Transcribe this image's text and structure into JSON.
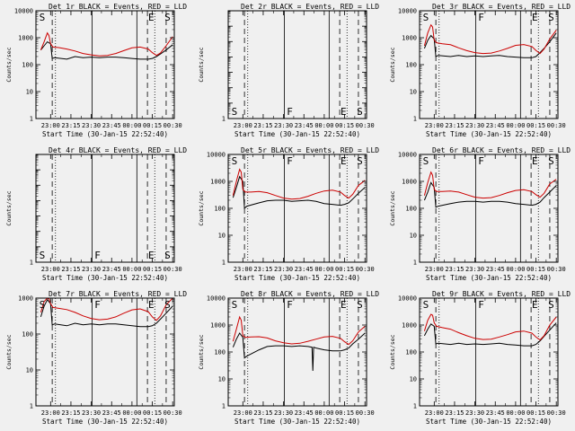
{
  "chart_data": [
    {
      "type": "line",
      "title": "Det 1r BLACK = Events, RED = LLD",
      "ylabel": "Counts/sec",
      "xlabel": "Start Time (30-Jan-15 22:52:40)",
      "xtick_labels": [
        "23:00",
        "23:15",
        "23:30",
        "23:45",
        "00:00",
        "00:15",
        "00:30"
      ],
      "ylog": true,
      "ylim": [
        1,
        10000
      ],
      "ytick_labels": [
        "1",
        "10",
        "100",
        "1000",
        "10000"
      ],
      "markers": [
        "S",
        "E",
        "S"
      ],
      "series": [
        {
          "color": "#000000",
          "x": [
            22.88,
            22.92,
            22.96,
            23.0,
            23.02,
            23.05,
            23.2,
            23.3,
            23.4,
            23.5,
            23.6,
            23.7,
            23.8,
            23.9,
            24.0,
            24.1,
            24.2,
            24.25,
            24.3,
            24.35,
            24.42,
            24.5
          ],
          "y": [
            350,
            500,
            700,
            600,
            170,
            180,
            160,
            200,
            180,
            190,
            180,
            190,
            190,
            180,
            170,
            160,
            160,
            170,
            200,
            250,
            350,
            550
          ]
        },
        {
          "color": "#cc0000",
          "x": [
            22.88,
            22.92,
            22.96,
            22.98,
            23.0,
            23.03,
            23.1,
            23.2,
            23.3,
            23.4,
            23.5,
            23.6,
            23.7,
            23.8,
            23.9,
            24.0,
            24.1,
            24.2,
            24.25,
            24.3,
            24.35,
            24.42,
            24.5
          ],
          "y": [
            350,
            700,
            1500,
            1200,
            600,
            450,
            430,
            380,
            320,
            260,
            230,
            210,
            220,
            260,
            330,
            420,
            450,
            380,
            280,
            220,
            270,
            500,
            1100
          ]
        }
      ]
    },
    {
      "type": "line",
      "title": "Det 2r BLACK = Events, RED = LLD",
      "ylabel": "Counts/sec",
      "xlabel": "Start Time (30-Jan-15 22:52:40)",
      "xtick_labels": [
        "23:00",
        "23:15",
        "23:30",
        "23:45",
        "00:00",
        "00:15",
        "00:30"
      ],
      "ylog": true,
      "ylim": [
        1,
        1.0000000001
      ],
      "ytick_labels": [
        "1",
        "",
        "",
        "",
        "",
        "",
        "",
        ""
      ],
      "markers": [
        "S",
        "F",
        "E",
        "S"
      ],
      "series": []
    },
    {
      "type": "line",
      "title": "Det 3r BLACK = Events, RED = LLD",
      "ylabel": "Counts/sec",
      "xlabel": "Start Time (30-Jan-15 22:52:40)",
      "xtick_labels": [
        "23:00",
        "23:15",
        "23:30",
        "23:45",
        "00:00",
        "00:15",
        "00:30"
      ],
      "ylog": true,
      "ylim": [
        1,
        10000
      ],
      "ytick_labels": [
        "1",
        "10",
        "100",
        "1000",
        "10000"
      ],
      "markers": [
        "S",
        "F",
        "E",
        "S"
      ],
      "series": [
        {
          "color": "#000000",
          "x": [
            22.88,
            22.92,
            22.96,
            23.0,
            23.02,
            23.05,
            23.2,
            23.3,
            23.4,
            23.5,
            23.6,
            23.7,
            23.8,
            23.9,
            24.0,
            24.1,
            24.2,
            24.25,
            24.3,
            24.35,
            24.42,
            24.5
          ],
          "y": [
            400,
            800,
            1200,
            900,
            200,
            220,
            200,
            220,
            200,
            210,
            200,
            210,
            220,
            200,
            190,
            180,
            180,
            200,
            280,
            400,
            700,
            1500
          ]
        },
        {
          "color": "#cc0000",
          "x": [
            22.88,
            22.92,
            22.96,
            22.98,
            23.0,
            23.03,
            23.1,
            23.2,
            23.3,
            23.4,
            23.5,
            23.6,
            23.7,
            23.8,
            23.9,
            24.0,
            24.1,
            24.2,
            24.25,
            24.3,
            24.35,
            24.42,
            24.5
          ],
          "y": [
            500,
            1500,
            3000,
            2500,
            800,
            650,
            600,
            550,
            420,
            330,
            280,
            260,
            270,
            320,
            400,
            520,
            560,
            470,
            340,
            260,
            380,
            900,
            1900
          ]
        }
      ]
    },
    {
      "type": "line",
      "title": "Det 4r BLACK = Events, RED = LLD",
      "ylabel": "Counts/sec",
      "xlabel": "Start Time (30-Jan-15 22:52:40)",
      "xtick_labels": [
        "23:00",
        "23:15",
        "23:30",
        "23:45",
        "00:00",
        "00:15",
        "00:30"
      ],
      "ylog": true,
      "ylim": [
        1,
        1.0000000001
      ],
      "ytick_labels": [
        "1",
        "",
        "",
        "",
        "",
        "",
        "",
        ""
      ],
      "markers": [
        "S",
        "F",
        "E",
        "S"
      ],
      "series": []
    },
    {
      "type": "line",
      "title": "Det 5r BLACK = Events, RED = LLD",
      "ylabel": "Counts/sec",
      "xlabel": "Start Time (30-Jan-15 22:52:40)",
      "xtick_labels": [
        "23:00",
        "23:15",
        "23:30",
        "23:45",
        "00:00",
        "00:15",
        "00:30"
      ],
      "ylog": true,
      "ylim": [
        1,
        10000
      ],
      "ytick_labels": [
        "1",
        "10",
        "100",
        "1000",
        "10000"
      ],
      "markers": [
        "S",
        "F",
        "E",
        "S"
      ],
      "series": [
        {
          "color": "#000000",
          "x": [
            22.88,
            22.92,
            22.96,
            23.0,
            23.02,
            23.05,
            23.2,
            23.3,
            23.4,
            23.5,
            23.6,
            23.7,
            23.8,
            23.9,
            24.0,
            24.1,
            24.2,
            24.25,
            24.3,
            24.35,
            24.42,
            24.5
          ],
          "y": [
            250,
            600,
            1500,
            1000,
            100,
            120,
            160,
            190,
            200,
            200,
            180,
            190,
            200,
            180,
            150,
            140,
            130,
            140,
            160,
            220,
            360,
            600
          ]
        },
        {
          "color": "#cc0000",
          "x": [
            22.88,
            22.92,
            22.96,
            22.98,
            23.0,
            23.03,
            23.1,
            23.2,
            23.3,
            23.4,
            23.5,
            23.6,
            23.7,
            23.8,
            23.9,
            24.0,
            24.1,
            24.2,
            24.25,
            24.3,
            24.35,
            24.42,
            24.5
          ],
          "y": [
            300,
            1000,
            2800,
            2200,
            500,
            400,
            400,
            420,
            380,
            300,
            240,
            220,
            230,
            280,
            360,
            440,
            470,
            400,
            300,
            240,
            330,
            700,
            1100
          ]
        }
      ]
    },
    {
      "type": "line",
      "title": "Det 6r BLACK = Events, RED = LLD",
      "ylabel": "Counts/sec",
      "xlabel": "Start Time (30-Jan-15 22:52:40)",
      "xtick_labels": [
        "23:00",
        "23:15",
        "23:30",
        "23:45",
        "00:00",
        "00:15",
        "00:30"
      ],
      "ylog": true,
      "ylim": [
        1,
        10000
      ],
      "ytick_labels": [
        "1",
        "10",
        "100",
        "1000",
        "10000"
      ],
      "markers": [
        "S",
        "F",
        "E",
        "S"
      ],
      "series": [
        {
          "color": "#000000",
          "x": [
            22.88,
            22.92,
            22.96,
            23.0,
            23.02,
            23.05,
            23.2,
            23.3,
            23.4,
            23.5,
            23.6,
            23.7,
            23.8,
            23.9,
            24.0,
            24.1,
            24.2,
            24.25,
            24.3,
            24.35,
            24.42,
            24.5
          ],
          "y": [
            200,
            400,
            900,
            600,
            110,
            120,
            150,
            170,
            180,
            180,
            170,
            180,
            180,
            170,
            150,
            140,
            130,
            140,
            170,
            250,
            400,
            700
          ]
        },
        {
          "color": "#cc0000",
          "x": [
            22.88,
            22.92,
            22.96,
            22.98,
            23.0,
            23.03,
            23.1,
            23.2,
            23.3,
            23.4,
            23.5,
            23.6,
            23.7,
            23.8,
            23.9,
            24.0,
            24.1,
            24.2,
            24.25,
            24.3,
            24.35,
            24.42,
            24.5
          ],
          "y": [
            300,
            900,
            2200,
            1700,
            500,
            420,
            420,
            440,
            400,
            320,
            260,
            240,
            250,
            300,
            380,
            460,
            490,
            420,
            320,
            260,
            360,
            800,
            1200
          ]
        }
      ]
    },
    {
      "type": "line",
      "title": "Det 7r BLACK = Events, RED = LLD",
      "ylabel": "Counts/sec",
      "xlabel": "Start Time (30-Jan-15 22:52:40)",
      "xtick_labels": [
        "23:00",
        "23:15",
        "23:30",
        "23:45",
        "00:00",
        "00:15",
        "00:30"
      ],
      "ylog": true,
      "ylim": [
        1,
        1000
      ],
      "ytick_labels": [
        "1",
        "10",
        "100",
        "1000"
      ],
      "markers": [
        "S",
        "F",
        "E",
        "S"
      ],
      "series": [
        {
          "color": "#000000",
          "x": [
            22.88,
            22.92,
            22.96,
            23.0,
            23.02,
            23.05,
            23.2,
            23.3,
            23.4,
            23.5,
            23.6,
            23.7,
            23.8,
            23.9,
            24.0,
            24.1,
            24.2,
            24.25,
            24.3,
            24.35,
            24.42,
            24.5
          ],
          "y": [
            300,
            600,
            900,
            700,
            180,
            190,
            170,
            200,
            180,
            190,
            180,
            190,
            190,
            180,
            170,
            160,
            160,
            170,
            200,
            260,
            380,
            600
          ]
        },
        {
          "color": "#cc0000",
          "x": [
            22.88,
            22.92,
            22.96,
            22.98,
            23.0,
            23.03,
            23.1,
            23.2,
            23.3,
            23.4,
            23.5,
            23.6,
            23.7,
            23.8,
            23.9,
            24.0,
            24.1,
            24.2,
            24.25,
            24.3,
            24.35,
            24.42,
            24.5
          ],
          "y": [
            400,
            800,
            1000,
            950,
            700,
            550,
            520,
            480,
            400,
            320,
            270,
            250,
            260,
            300,
            380,
            470,
            500,
            420,
            300,
            240,
            320,
            650,
            1000
          ]
        }
      ]
    },
    {
      "type": "line",
      "title": "Det 8r BLACK = Events, RED = LLD",
      "ylabel": "Counts/sec",
      "xlabel": "Start Time (30-Jan-15 22:52:40)",
      "xtick_labels": [
        "23:00",
        "23:15",
        "23:30",
        "23:45",
        "00:00",
        "00:15",
        "00:30"
      ],
      "ylog": true,
      "ylim": [
        1,
        10000
      ],
      "ytick_labels": [
        "1",
        "10",
        "100",
        "1000",
        "10000"
      ],
      "markers": [
        "S",
        "F",
        "E",
        "S"
      ],
      "series": [
        {
          "color": "#000000",
          "x": [
            22.88,
            22.92,
            22.96,
            23.0,
            23.02,
            23.05,
            23.2,
            23.3,
            23.4,
            23.5,
            23.6,
            23.7,
            23.8,
            23.85,
            23.86,
            23.87,
            23.9,
            24.0,
            24.1,
            24.2,
            24.25,
            24.3,
            24.35,
            24.42,
            24.5
          ],
          "y": [
            150,
            300,
            500,
            350,
            60,
            70,
            120,
            160,
            170,
            170,
            160,
            170,
            160,
            150,
            20,
            150,
            140,
            120,
            110,
            110,
            120,
            140,
            200,
            300,
            500
          ]
        },
        {
          "color": "#cc0000",
          "x": [
            22.88,
            22.92,
            22.96,
            22.98,
            23.0,
            23.03,
            23.1,
            23.2,
            23.3,
            23.4,
            23.5,
            23.6,
            23.7,
            23.8,
            23.9,
            24.0,
            24.1,
            24.2,
            24.25,
            24.3,
            24.35,
            24.42,
            24.5
          ],
          "y": [
            250,
            700,
            2000,
            1500,
            400,
            350,
            360,
            370,
            330,
            260,
            220,
            200,
            210,
            250,
            300,
            360,
            380,
            320,
            240,
            190,
            260,
            550,
            900
          ]
        }
      ]
    },
    {
      "type": "line",
      "title": "Det 9r BLACK = Events, RED = LLD",
      "ylabel": "Counts/sec",
      "xlabel": "Start Time (30-Jan-15 22:52:40)",
      "xtick_labels": [
        "23:00",
        "23:15",
        "23:30",
        "23:45",
        "00:00",
        "00:15",
        "00:30"
      ],
      "ylog": true,
      "ylim": [
        1,
        10000
      ],
      "ytick_labels": [
        "1",
        "10",
        "100",
        "1000",
        "10000"
      ],
      "markers": [
        "S",
        "F",
        "E",
        "S"
      ],
      "series": [
        {
          "color": "#000000",
          "x": [
            22.88,
            22.92,
            22.96,
            23.0,
            23.02,
            23.05,
            23.2,
            23.3,
            23.4,
            23.5,
            23.6,
            23.7,
            23.8,
            23.9,
            24.0,
            24.1,
            24.2,
            24.25,
            24.3,
            24.35,
            24.42,
            24.5
          ],
          "y": [
            400,
            700,
            1100,
            900,
            200,
            210,
            190,
            210,
            190,
            200,
            190,
            200,
            210,
            190,
            180,
            170,
            170,
            190,
            260,
            380,
            650,
            1200
          ]
        },
        {
          "color": "#cc0000",
          "x": [
            22.88,
            22.92,
            22.96,
            22.98,
            23.0,
            23.03,
            23.1,
            23.2,
            23.3,
            23.4,
            23.5,
            23.6,
            23.7,
            23.8,
            23.9,
            24.0,
            24.1,
            24.2,
            24.25,
            24.3,
            24.35,
            24.42,
            24.5
          ],
          "y": [
            600,
            1500,
            2500,
            2300,
            1200,
            900,
            800,
            700,
            520,
            400,
            320,
            290,
            300,
            360,
            440,
            560,
            600,
            500,
            360,
            280,
            400,
            1000,
            2000
          ]
        }
      ]
    }
  ]
}
